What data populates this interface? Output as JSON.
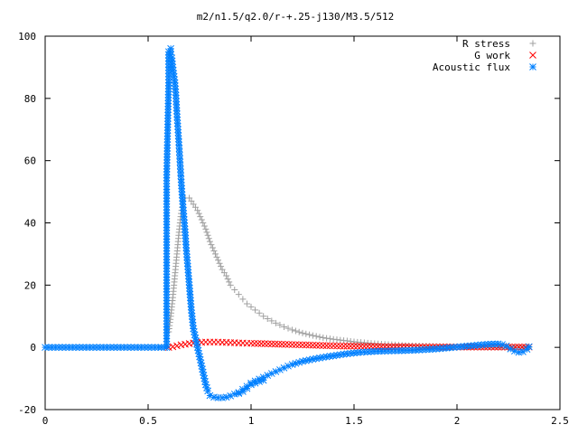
{
  "chart_data": {
    "type": "scatter",
    "title": "m2/n1.5/q2.0/r-+.25-j130/M3.5/512",
    "xlabel": "",
    "ylabel": "",
    "xlim": [
      0,
      2.5
    ],
    "ylim": [
      -20,
      100
    ],
    "xticks": [
      "0",
      "0.5",
      "1",
      "1.5",
      "2",
      "2.5"
    ],
    "yticks": [
      "-20",
      "0",
      "20",
      "40",
      "60",
      "80",
      "100"
    ],
    "xtick_values": [
      0,
      0.5,
      1,
      1.5,
      2,
      2.5
    ],
    "ytick_values": [
      -20,
      0,
      20,
      40,
      60,
      80,
      100
    ],
    "grid": false,
    "legend_position": "top-right",
    "series": [
      {
        "name": "R stress",
        "marker": "plus",
        "color": "#a0a0a0",
        "points": [
          [
            0.6,
            5
          ],
          [
            0.61,
            10
          ],
          [
            0.62,
            16
          ],
          [
            0.63,
            23
          ],
          [
            0.64,
            30
          ],
          [
            0.65,
            37
          ],
          [
            0.66,
            43
          ],
          [
            0.67,
            47
          ],
          [
            0.68,
            48
          ],
          [
            0.7,
            48
          ],
          [
            0.72,
            46
          ],
          [
            0.74,
            44
          ],
          [
            0.76,
            41
          ],
          [
            0.78,
            38
          ],
          [
            0.8,
            34
          ],
          [
            0.82,
            31
          ],
          [
            0.84,
            28
          ],
          [
            0.86,
            25
          ],
          [
            0.88,
            23
          ],
          [
            0.9,
            20
          ],
          [
            0.92,
            18.5
          ],
          [
            0.94,
            17
          ],
          [
            0.96,
            15.5
          ],
          [
            0.98,
            14
          ],
          [
            1.0,
            13
          ],
          [
            1.02,
            12
          ],
          [
            1.04,
            11
          ],
          [
            1.06,
            10
          ],
          [
            1.08,
            9.2
          ],
          [
            1.1,
            8.5
          ],
          [
            1.12,
            7.8
          ],
          [
            1.14,
            7.2
          ],
          [
            1.16,
            6.6
          ],
          [
            1.18,
            6.1
          ],
          [
            1.2,
            5.6
          ],
          [
            1.25,
            4.6
          ],
          [
            1.3,
            3.8
          ],
          [
            1.35,
            3.1
          ],
          [
            1.4,
            2.6
          ],
          [
            1.45,
            2.2
          ],
          [
            1.5,
            1.8
          ],
          [
            1.55,
            1.5
          ],
          [
            1.6,
            1.2
          ],
          [
            1.65,
            1.0
          ],
          [
            1.7,
            0.8
          ],
          [
            1.75,
            0.6
          ],
          [
            1.8,
            0.5
          ],
          [
            1.85,
            0.4
          ],
          [
            1.9,
            0.3
          ],
          [
            1.95,
            0.25
          ],
          [
            2.0,
            0.2
          ],
          [
            2.05,
            0.15
          ],
          [
            2.1,
            0.1
          ],
          [
            2.15,
            0.1
          ],
          [
            2.2,
            0.05
          ],
          [
            2.25,
            0.05
          ],
          [
            2.3,
            0.05
          ],
          [
            2.35,
            0
          ]
        ]
      },
      {
        "name": "G work",
        "marker": "cross",
        "color": "#ff0000",
        "points": [
          [
            0.6,
            0
          ],
          [
            0.62,
            0.2
          ],
          [
            0.64,
            0.5
          ],
          [
            0.66,
            0.8
          ],
          [
            0.68,
            1.0
          ],
          [
            0.7,
            1.2
          ],
          [
            0.72,
            1.4
          ],
          [
            0.74,
            1.5
          ],
          [
            0.76,
            1.6
          ],
          [
            0.78,
            1.7
          ],
          [
            0.8,
            1.7
          ],
          [
            0.82,
            1.7
          ],
          [
            0.84,
            1.7
          ],
          [
            0.86,
            1.6
          ],
          [
            0.88,
            1.6
          ],
          [
            0.9,
            1.5
          ],
          [
            0.92,
            1.5
          ],
          [
            0.94,
            1.4
          ],
          [
            0.96,
            1.4
          ],
          [
            0.98,
            1.3
          ],
          [
            1.0,
            1.3
          ],
          [
            1.05,
            1.2
          ],
          [
            1.1,
            1.1
          ],
          [
            1.15,
            1.0
          ],
          [
            1.2,
            0.9
          ],
          [
            1.25,
            0.8
          ],
          [
            1.3,
            0.7
          ],
          [
            1.35,
            0.6
          ],
          [
            1.4,
            0.5
          ],
          [
            1.45,
            0.4
          ],
          [
            1.5,
            0.4
          ],
          [
            1.55,
            0.3
          ],
          [
            1.6,
            0.3
          ],
          [
            1.65,
            0.2
          ],
          [
            1.7,
            0.2
          ],
          [
            1.75,
            0.2
          ],
          [
            1.8,
            0.1
          ],
          [
            1.85,
            0.1
          ],
          [
            1.9,
            0.1
          ],
          [
            1.95,
            0.1
          ],
          [
            2.0,
            0.1
          ],
          [
            2.05,
            0.1
          ],
          [
            2.1,
            0.1
          ],
          [
            2.15,
            0.1
          ],
          [
            2.2,
            0.1
          ],
          [
            2.25,
            0.1
          ],
          [
            2.3,
            0.1
          ],
          [
            2.35,
            0.1
          ]
        ]
      },
      {
        "name": "Acoustic flux",
        "marker": "star",
        "color": "#0080ff",
        "points": [
          [
            0.0,
            0
          ],
          [
            0.05,
            0
          ],
          [
            0.1,
            0
          ],
          [
            0.15,
            0
          ],
          [
            0.2,
            0
          ],
          [
            0.25,
            0
          ],
          [
            0.3,
            0
          ],
          [
            0.35,
            0
          ],
          [
            0.4,
            0
          ],
          [
            0.45,
            0
          ],
          [
            0.5,
            0
          ],
          [
            0.55,
            0
          ],
          [
            0.58,
            0
          ],
          [
            0.59,
            0
          ],
          [
            0.59,
            54.5
          ],
          [
            0.6,
            86
          ],
          [
            0.6,
            95
          ],
          [
            0.61,
            96
          ],
          [
            0.61,
            94
          ],
          [
            0.615,
            93
          ],
          [
            0.62,
            90
          ],
          [
            0.63,
            85
          ],
          [
            0.635,
            81
          ],
          [
            0.64,
            75
          ],
          [
            0.645,
            70
          ],
          [
            0.65,
            65
          ],
          [
            0.655,
            59.5
          ],
          [
            0.66,
            54
          ],
          [
            0.665,
            49
          ],
          [
            0.67,
            45
          ],
          [
            0.675,
            41
          ],
          [
            0.68,
            37
          ],
          [
            0.685,
            32
          ],
          [
            0.69,
            28
          ],
          [
            0.695,
            24
          ],
          [
            0.7,
            20
          ],
          [
            0.705,
            16
          ],
          [
            0.71,
            12
          ],
          [
            0.715,
            9
          ],
          [
            0.72,
            6
          ],
          [
            0.73,
            3
          ],
          [
            0.74,
            0
          ],
          [
            0.75,
            -3
          ],
          [
            0.76,
            -6
          ],
          [
            0.77,
            -9
          ],
          [
            0.78,
            -12
          ],
          [
            0.79,
            -14
          ],
          [
            0.8,
            -15.5
          ],
          [
            0.82,
            -16
          ],
          [
            0.84,
            -16.2
          ],
          [
            0.86,
            -16.2
          ],
          [
            0.88,
            -16
          ],
          [
            0.9,
            -15.6
          ],
          [
            0.92,
            -15
          ],
          [
            0.94,
            -14.5
          ],
          [
            0.96,
            -13.5
          ],
          [
            0.98,
            -12.5
          ],
          [
            1.0,
            -11.5
          ],
          [
            1.02,
            -10.8
          ],
          [
            1.04,
            -10.2
          ],
          [
            1.06,
            -9.6
          ],
          [
            1.08,
            -9
          ],
          [
            1.1,
            -8.4
          ],
          [
            1.12,
            -7.8
          ],
          [
            1.14,
            -7.2
          ],
          [
            1.16,
            -6.6
          ],
          [
            1.18,
            -6
          ],
          [
            1.2,
            -5.5
          ],
          [
            1.25,
            -4.5
          ],
          [
            1.3,
            -3.8
          ],
          [
            1.35,
            -3.2
          ],
          [
            1.4,
            -2.7
          ],
          [
            1.45,
            -2.2
          ],
          [
            1.5,
            -1.8
          ],
          [
            1.55,
            -1.5
          ],
          [
            1.6,
            -1.3
          ],
          [
            1.65,
            -1.2
          ],
          [
            1.7,
            -1.1
          ],
          [
            1.75,
            -1.0
          ],
          [
            1.8,
            -0.9
          ],
          [
            1.85,
            -0.7
          ],
          [
            1.9,
            -0.5
          ],
          [
            1.95,
            -0.2
          ],
          [
            2.0,
            0.1
          ],
          [
            2.05,
            0.4
          ],
          [
            2.1,
            0.7
          ],
          [
            2.15,
            1.0
          ],
          [
            2.2,
            1.1
          ],
          [
            2.22,
            0.9
          ],
          [
            2.24,
            0.4
          ],
          [
            2.26,
            -0.5
          ],
          [
            2.28,
            -1.2
          ],
          [
            2.3,
            -1.6
          ],
          [
            2.32,
            -1.4
          ],
          [
            2.34,
            -0.6
          ],
          [
            2.35,
            0.2
          ],
          [
            0.94,
            -14.8
          ],
          [
            0.96,
            -14.2
          ],
          [
            0.98,
            -13.2
          ],
          [
            1.0,
            -12
          ],
          [
            1.02,
            -11.5
          ],
          [
            1.04,
            -11
          ],
          [
            1.06,
            -10.6
          ]
        ]
      }
    ]
  }
}
